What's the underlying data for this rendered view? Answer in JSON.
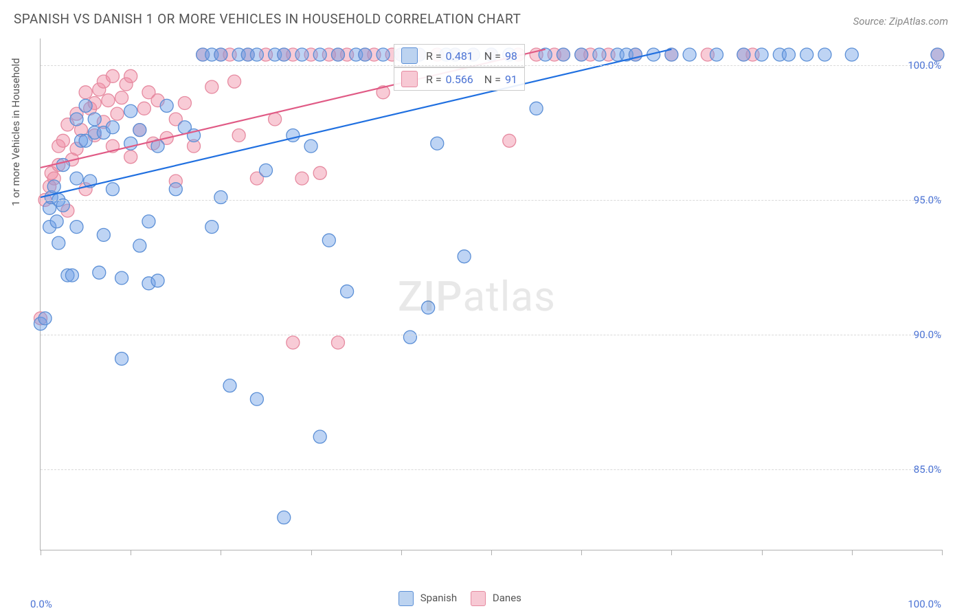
{
  "title": "SPANISH VS DANISH 1 OR MORE VEHICLES IN HOUSEHOLD CORRELATION CHART",
  "source": "Source: ZipAtlas.com",
  "ylabel": "1 or more Vehicles in Household",
  "watermark_zip": "ZIP",
  "watermark_atlas": "atlas",
  "xlim": [
    0,
    100
  ],
  "ylim": [
    82,
    101
  ],
  "y_gridlines": [
    85,
    90,
    95,
    100
  ],
  "y_tick_labels": [
    "85.0%",
    "90.0%",
    "95.0%",
    "100.0%"
  ],
  "x_ticks": [
    0,
    10,
    20,
    30,
    40,
    50,
    60,
    70,
    80,
    90,
    100
  ],
  "x_tick_labels_left": "0.0%",
  "x_tick_labels_right": "100.0%",
  "series": [
    {
      "name": "Spanish",
      "color_fill": "rgba(110,160,230,0.45)",
      "color_stroke": "#5b8fd6",
      "legend_swatch_fill": "#bcd3f0",
      "legend_swatch_stroke": "#5b8fd6",
      "trend_color": "#1f6fe0",
      "R": "0.481",
      "N": "98",
      "trend": {
        "x1": 0,
        "y1": 95.1,
        "x2": 70,
        "y2": 100.6
      },
      "points": [
        [
          0,
          90.4
        ],
        [
          0.5,
          90.6
        ],
        [
          1,
          94.0
        ],
        [
          1,
          94.7
        ],
        [
          1.2,
          95.1
        ],
        [
          1.5,
          95.5
        ],
        [
          1.8,
          94.2
        ],
        [
          2,
          95.0
        ],
        [
          2,
          93.4
        ],
        [
          2.5,
          94.8
        ],
        [
          2.5,
          96.3
        ],
        [
          3,
          92.2
        ],
        [
          3.5,
          92.2
        ],
        [
          4,
          94.0
        ],
        [
          4,
          95.8
        ],
        [
          4,
          98.0
        ],
        [
          4.5,
          97.2
        ],
        [
          5,
          97.2
        ],
        [
          5,
          98.5
        ],
        [
          5.5,
          95.7
        ],
        [
          6,
          97.5
        ],
        [
          6,
          98.0
        ],
        [
          6.5,
          92.3
        ],
        [
          7,
          97.5
        ],
        [
          7,
          93.7
        ],
        [
          8,
          95.4
        ],
        [
          8,
          97.7
        ],
        [
          9,
          89.1
        ],
        [
          9,
          92.1
        ],
        [
          10,
          97.1
        ],
        [
          10,
          98.3
        ],
        [
          11,
          97.6
        ],
        [
          11,
          93.3
        ],
        [
          12,
          91.9
        ],
        [
          12,
          94.2
        ],
        [
          13,
          92.0
        ],
        [
          13,
          97.0
        ],
        [
          14,
          98.5
        ],
        [
          15,
          95.4
        ],
        [
          16,
          97.7
        ],
        [
          17,
          97.4
        ],
        [
          18,
          100.4
        ],
        [
          19,
          100.4
        ],
        [
          19,
          94.0
        ],
        [
          20,
          100.4
        ],
        [
          20,
          95.1
        ],
        [
          21,
          88.1
        ],
        [
          22,
          100.4
        ],
        [
          23,
          100.4
        ],
        [
          24,
          87.6
        ],
        [
          24,
          100.4
        ],
        [
          25,
          96.1
        ],
        [
          26,
          100.4
        ],
        [
          27,
          100.4
        ],
        [
          27,
          83.2
        ],
        [
          28,
          97.4
        ],
        [
          29,
          100.4
        ],
        [
          30,
          97.0
        ],
        [
          31,
          86.2
        ],
        [
          31,
          100.4
        ],
        [
          32,
          93.5
        ],
        [
          33,
          100.4
        ],
        [
          34,
          91.6
        ],
        [
          35,
          100.4
        ],
        [
          36,
          100.4
        ],
        [
          38,
          100.4
        ],
        [
          40,
          100.4
        ],
        [
          41,
          89.9
        ],
        [
          42,
          100.4
        ],
        [
          43,
          91.0
        ],
        [
          44,
          97.1
        ],
        [
          45,
          100.4
        ],
        [
          46,
          100.4
        ],
        [
          47,
          92.9
        ],
        [
          48,
          100.4
        ],
        [
          50,
          100.4
        ],
        [
          52,
          100.4
        ],
        [
          55,
          98.4
        ],
        [
          56,
          100.4
        ],
        [
          58,
          100.4
        ],
        [
          60,
          100.4
        ],
        [
          62,
          100.4
        ],
        [
          64,
          100.4
        ],
        [
          65,
          100.4
        ],
        [
          66,
          100.4
        ],
        [
          68,
          100.4
        ],
        [
          70,
          100.4
        ],
        [
          72,
          100.4
        ],
        [
          75,
          100.4
        ],
        [
          78,
          100.4
        ],
        [
          80,
          100.4
        ],
        [
          82,
          100.4
        ],
        [
          83,
          100.4
        ],
        [
          85,
          100.4
        ],
        [
          87,
          100.4
        ],
        [
          90,
          100.4
        ],
        [
          99.5,
          100.4
        ]
      ]
    },
    {
      "name": "Danes",
      "color_fill": "rgba(240,140,165,0.45)",
      "color_stroke": "#e68aa0",
      "legend_swatch_fill": "#f7c9d4",
      "legend_swatch_stroke": "#e68aa0",
      "trend_color": "#e05a85",
      "R": "0.566",
      "N": "91",
      "trend": {
        "x1": 0,
        "y1": 96.2,
        "x2": 56,
        "y2": 100.6
      },
      "points": [
        [
          0,
          90.6
        ],
        [
          0.5,
          95.0
        ],
        [
          1,
          95.5
        ],
        [
          1.2,
          96.0
        ],
        [
          1.5,
          95.8
        ],
        [
          2,
          96.3
        ],
        [
          2,
          97.0
        ],
        [
          2.5,
          97.2
        ],
        [
          3,
          97.8
        ],
        [
          3,
          94.6
        ],
        [
          3.5,
          96.5
        ],
        [
          4,
          98.2
        ],
        [
          4,
          96.9
        ],
        [
          4.5,
          97.6
        ],
        [
          5,
          99.0
        ],
        [
          5,
          95.4
        ],
        [
          5.5,
          98.4
        ],
        [
          6,
          97.4
        ],
        [
          6,
          98.6
        ],
        [
          6.5,
          99.1
        ],
        [
          7,
          99.4
        ],
        [
          7,
          97.9
        ],
        [
          7.5,
          98.7
        ],
        [
          8,
          97.0
        ],
        [
          8,
          99.6
        ],
        [
          8.5,
          98.2
        ],
        [
          9,
          98.8
        ],
        [
          9.5,
          99.3
        ],
        [
          10,
          99.6
        ],
        [
          10,
          96.6
        ],
        [
          11,
          97.6
        ],
        [
          11.5,
          98.4
        ],
        [
          12,
          99.0
        ],
        [
          12.5,
          97.1
        ],
        [
          13,
          98.7
        ],
        [
          14,
          97.3
        ],
        [
          15,
          98.0
        ],
        [
          15,
          95.7
        ],
        [
          16,
          98.6
        ],
        [
          17,
          97.0
        ],
        [
          18,
          100.4
        ],
        [
          19,
          99.2
        ],
        [
          20,
          100.4
        ],
        [
          21,
          100.4
        ],
        [
          21.5,
          99.4
        ],
        [
          22,
          97.4
        ],
        [
          23,
          100.4
        ],
        [
          24,
          95.8
        ],
        [
          25,
          100.4
        ],
        [
          26,
          98.0
        ],
        [
          27,
          100.4
        ],
        [
          28,
          100.4
        ],
        [
          28,
          89.7
        ],
        [
          29,
          95.8
        ],
        [
          30,
          100.4
        ],
        [
          31,
          96.0
        ],
        [
          32,
          100.4
        ],
        [
          33,
          89.7
        ],
        [
          33,
          100.4
        ],
        [
          34,
          100.4
        ],
        [
          36,
          100.4
        ],
        [
          37,
          100.4
        ],
        [
          38,
          99.0
        ],
        [
          39,
          100.4
        ],
        [
          40,
          100.4
        ],
        [
          42,
          100.4
        ],
        [
          44,
          100.4
        ],
        [
          46,
          100.4
        ],
        [
          48,
          100.4
        ],
        [
          50,
          100.4
        ],
        [
          52,
          97.2
        ],
        [
          53,
          100.4
        ],
        [
          55,
          100.4
        ],
        [
          57,
          100.4
        ],
        [
          58,
          100.4
        ],
        [
          60,
          100.4
        ],
        [
          61,
          100.4
        ],
        [
          63,
          100.4
        ],
        [
          66,
          100.4
        ],
        [
          70,
          100.4
        ],
        [
          74,
          100.4
        ],
        [
          78,
          100.4
        ],
        [
          79,
          100.4
        ],
        [
          99.5,
          100.4
        ]
      ]
    }
  ],
  "legend_labels": [
    "Spanish",
    "Danes"
  ],
  "marker_radius": 9.5,
  "stats_labels": {
    "R": "R =",
    "N": "N ="
  }
}
